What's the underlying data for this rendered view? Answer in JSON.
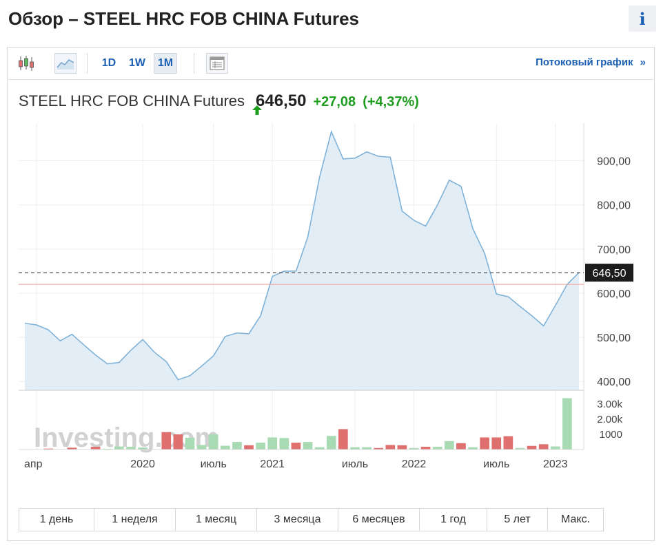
{
  "header": {
    "title": "Обзор – STEEL HRC FOB CHINA Futures",
    "info_label": "i"
  },
  "toolbar": {
    "timeframes": [
      "1D",
      "1W",
      "1M"
    ],
    "active_timeframe": "1M",
    "stream_link": "Потоковый график",
    "stream_arrow": "»"
  },
  "quote": {
    "name": "STEEL HRC FOB CHINA Futures",
    "last": "646,50",
    "change": "+27,08",
    "change_pct": "(+4,37%)",
    "direction": "up"
  },
  "colors": {
    "line": "#7fb2d8",
    "area": "#e3edf5",
    "up_volume": "#a8dbb4",
    "down_volume": "#e06f6f",
    "positive": "#1e9e1e",
    "link": "#1a5fb4",
    "reference_line": "#f2a3a3"
  },
  "ranges": [
    "1 день",
    "1 неделя",
    "1 месяц",
    "3 месяца",
    "6 месяцев",
    "1 год",
    "5 лет",
    "Макс."
  ],
  "watermark": "Investing.com",
  "chart_data": {
    "type": "area",
    "price_axis": {
      "ylim": [
        380,
        985
      ],
      "ticks": [
        400,
        500,
        600,
        700,
        800,
        900
      ],
      "tick_labels": [
        "400,00",
        "500,00",
        "600,00",
        "700,00",
        "800,00",
        "900,00"
      ]
    },
    "current_price": 646.5,
    "current_label": "646,50",
    "reference_price": 620,
    "x_labels": [
      "апр",
      "2020",
      "июль",
      "2021",
      "июль",
      "2022",
      "июль",
      "2023"
    ],
    "x_label_index": [
      1,
      10,
      16,
      21,
      28,
      33,
      40,
      45
    ],
    "price": [
      532,
      528,
      517,
      492,
      507,
      483,
      460,
      440,
      443,
      471,
      495,
      466,
      445,
      404,
      413,
      435,
      458,
      502,
      510,
      508,
      549,
      638,
      650,
      650,
      727,
      863,
      966,
      904,
      906,
      920,
      910,
      908,
      786,
      765,
      752,
      800,
      856,
      842,
      746,
      690,
      598,
      592,
      570,
      549,
      526,
      572,
      620,
      646.5
    ],
    "volume_axis": {
      "ylim": [
        0,
        3600
      ],
      "ticks": [
        1000,
        2000,
        3000
      ],
      "tick_labels": [
        "1000",
        "2.00k",
        "3.00k"
      ]
    },
    "volume": [
      20,
      20,
      60,
      0,
      120,
      20,
      180,
      50,
      200,
      180,
      130,
      20,
      1150,
      1000,
      780,
      300,
      1000,
      250,
      500,
      280,
      450,
      800,
      760,
      450,
      500,
      150,
      900,
      1350,
      150,
      150,
      100,
      300,
      280,
      100,
      180,
      180,
      560,
      420,
      150,
      800,
      800,
      880,
      100,
      240,
      350,
      200,
      3400,
      0
    ],
    "volume_dir": [
      "up",
      "up",
      "down",
      "up",
      "down",
      "up",
      "down",
      "up",
      "up",
      "up",
      "up",
      "up",
      "down",
      "down",
      "up",
      "up",
      "up",
      "up",
      "up",
      "down",
      "up",
      "up",
      "up",
      "down",
      "up",
      "up",
      "up",
      "down",
      "up",
      "up",
      "down",
      "down",
      "down",
      "up",
      "down",
      "up",
      "up",
      "down",
      "up",
      "down",
      "down",
      "down",
      "up",
      "down",
      "down",
      "up",
      "up",
      "up"
    ]
  }
}
